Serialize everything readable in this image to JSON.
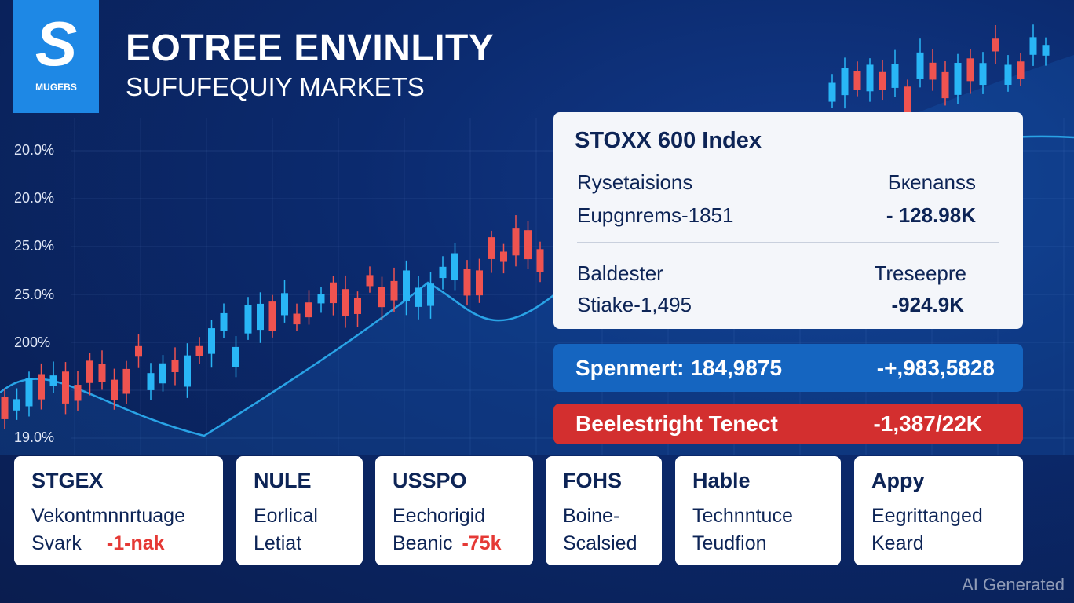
{
  "header": {
    "logo_mark": "S",
    "logo_text": "MUGEBS",
    "title": "EOTREE ENVINLITY",
    "subtitle": "SUFUFEQUIY MARKETS"
  },
  "axis_labels": [
    "20.0%",
    "20.0%",
    "25.0%",
    "25.0%",
    "200%",
    "19.0%"
  ],
  "index_panel": {
    "title": "STOXX 600 Index",
    "rows": [
      {
        "left_label": "Rysetaisions",
        "left_value": "Eupgnrems-1851",
        "right_label": "Бкenanss",
        "right_value": "- 128.98K"
      },
      {
        "left_label": "Baldester",
        "left_value": "Stiake-1,495",
        "right_label": "Treseepre",
        "right_value": "-924.9K"
      }
    ]
  },
  "banners": [
    {
      "label": "Spenmert: 184,9875",
      "value": "-+,983,5828"
    },
    {
      "label": "Beelestright Tenect",
      "value": "-1,387/22K"
    }
  ],
  "cards": [
    {
      "title": "STGEX",
      "line1": "Vekontmnnrtuage",
      "line2": "Svark",
      "highlight": "-1-nak"
    },
    {
      "title": "NULE",
      "line1": "Eorlical",
      "line2": "Letiat"
    },
    {
      "title": "USSPO",
      "line1": "Eechorigid",
      "line2": "Beanic",
      "highlight": "-75k"
    },
    {
      "title": "FOHS",
      "line1": "Boine-",
      "line2": "Scalsied"
    },
    {
      "title": "Hable",
      "line1": "Technntuce",
      "line2": "Teudfion"
    },
    {
      "title": "Appy",
      "line1": "Eegrittanged",
      "line2": "Keard"
    }
  ],
  "watermark": "AI Generated"
}
